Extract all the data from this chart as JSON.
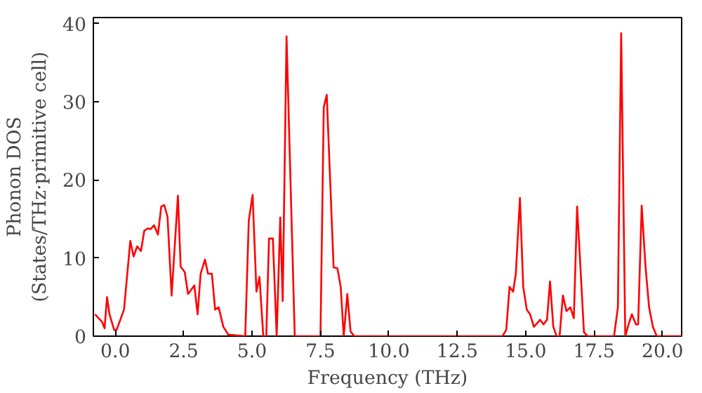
{
  "chart_data": {
    "type": "line",
    "xlabel": "Frequency (THz)",
    "ylabel": "Phonon DOS\n(States/THz·primitive cell)",
    "xlim": [
      -0.8,
      20.7
    ],
    "ylim": [
      0,
      40.8
    ],
    "xticks": [
      {
        "value": 0,
        "label": "0.0"
      },
      {
        "value": 2.5,
        "label": "2.5"
      },
      {
        "value": 5,
        "label": "5.0"
      },
      {
        "value": 7.5,
        "label": "7.5"
      },
      {
        "value": 10,
        "label": "10.0"
      },
      {
        "value": 12.5,
        "label": "12.5"
      },
      {
        "value": 15,
        "label": "15.0"
      },
      {
        "value": 17.5,
        "label": "17.5"
      },
      {
        "value": 20,
        "label": "20.0"
      }
    ],
    "yticks": [
      0,
      10,
      20,
      30,
      40
    ],
    "grid": false,
    "series": [
      {
        "color": "#ff0000",
        "x": [
          -0.74,
          -0.48,
          -0.39,
          -0.3,
          -0.21,
          -0.04,
          0.05,
          0.32,
          0.55,
          0.67,
          0.8,
          0.94,
          1.06,
          1.2,
          1.29,
          1.42,
          1.56,
          1.68,
          1.79,
          1.91,
          2.06,
          2.29,
          2.39,
          2.54,
          2.66,
          2.89,
          3.01,
          3.12,
          3.28,
          3.39,
          3.53,
          3.65,
          3.78,
          3.95,
          4.13,
          4.75,
          4.88,
          5.02,
          5.16,
          5.27,
          5.41,
          5.52,
          5.62,
          5.76,
          5.9,
          6.03,
          6.12,
          6.26,
          6.56,
          7.5,
          7.62,
          7.73,
          7.98,
          8.12,
          8.24,
          8.35,
          8.48,
          8.6,
          8.74,
          14.15,
          14.29,
          14.41,
          14.54,
          14.64,
          14.79,
          14.91,
          15.04,
          15.16,
          15.3,
          15.53,
          15.65,
          15.78,
          15.89,
          16.01,
          16.13,
          16.24,
          16.36,
          16.49,
          16.63,
          16.76,
          16.88,
          17.13,
          17.26,
          18.23,
          18.37,
          18.49,
          18.64,
          18.76,
          18.88,
          19.03,
          19.11,
          19.24,
          19.38,
          19.51,
          19.65,
          19.79,
          20.7
        ],
        "values": [
          2.8,
          1.8,
          1.0,
          5.0,
          2.8,
          0.8,
          0.8,
          3.4,
          12.2,
          10.2,
          11.5,
          10.9,
          13.5,
          13.8,
          13.7,
          14.2,
          13.0,
          16.6,
          16.8,
          15.3,
          5.2,
          18.0,
          8.9,
          8.2,
          5.4,
          6.5,
          2.8,
          8.0,
          9.8,
          8.0,
          8.0,
          3.4,
          3.7,
          1.2,
          0.2,
          0,
          14.8,
          18.1,
          5.7,
          7.6,
          0,
          0,
          12.5,
          12.5,
          0,
          15.2,
          4.5,
          38.4,
          0,
          0,
          29.3,
          30.9,
          8.8,
          8.7,
          6.3,
          0,
          5.4,
          0.6,
          0,
          0,
          0.8,
          6.3,
          5.7,
          8.0,
          17.7,
          6.3,
          3.4,
          2.8,
          1.2,
          2.1,
          1.5,
          2.1,
          7.0,
          1.2,
          0,
          0,
          5.2,
          3.2,
          3.7,
          2.3,
          16.6,
          0.5,
          0,
          0,
          3.7,
          38.8,
          0,
          1.5,
          2.8,
          1.5,
          1.5,
          16.7,
          8.9,
          3.7,
          1.2,
          0,
          0
        ]
      }
    ]
  }
}
